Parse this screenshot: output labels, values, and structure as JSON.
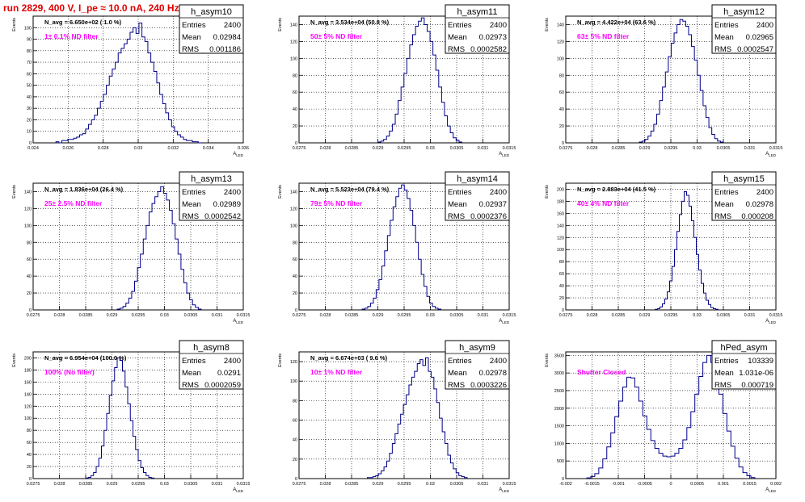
{
  "run_title": "run 2829,   400 V, I_pe ≈ 10.0 nA, 240 Hz",
  "colors": {
    "histogram": "#00008b",
    "annotation": "#ff00ff",
    "title": "#e00000"
  },
  "chart_data": [
    {
      "type": "histogram",
      "name": "h_asym10",
      "stats": {
        "entries": "2400",
        "mean": "0.02984",
        "rms": "0.001186"
      },
      "navg": "N_avg = 6.650e+02 ( 1.0 %)",
      "annotation": "1± 0.1% ND filter",
      "xlabel": "A_LED",
      "ylabel": "Events",
      "xlim": [
        0.024,
        0.036
      ],
      "ylim": [
        0,
        110
      ],
      "xticks": [
        "0.024",
        "0.026",
        "0.028",
        "0.03",
        "0.032",
        "0.034",
        "0.036"
      ],
      "yticks": [
        "0",
        "10",
        "20",
        "30",
        "40",
        "50",
        "60",
        "70",
        "80",
        "90",
        "100"
      ],
      "bins": {
        "lo": 0.0253,
        "hi": 0.0336,
        "values": [
          1,
          0,
          2,
          2,
          3,
          3,
          4,
          5,
          7,
          8,
          12,
          16,
          20,
          24,
          30,
          36,
          42,
          50,
          58,
          64,
          70,
          78,
          82,
          86,
          90,
          96,
          100,
          95,
          104,
          92,
          88,
          78,
          70,
          62,
          52,
          42,
          34,
          26,
          20,
          14,
          10,
          7,
          5,
          3,
          2,
          2,
          1,
          1,
          0
        ]
      }
    },
    {
      "type": "histogram",
      "name": "h_asym11",
      "stats": {
        "entries": "2400",
        "mean": "0.02973",
        "rms": "0.0002582"
      },
      "navg": "N_avg = 3.534e+04 (50.8 %)",
      "annotation": "50± 5% ND filter",
      "xlabel": "A_LED",
      "ylabel": "Events",
      "xlim": [
        0.0275,
        0.0315
      ],
      "ylim": [
        0,
        150
      ],
      "xticks": [
        "0.0275",
        "0.028",
        "0.0285",
        "0.029",
        "0.0295",
        "0.03",
        "0.0305",
        "0.031",
        "0.0315"
      ],
      "yticks": [
        "0",
        "20",
        "40",
        "60",
        "80",
        "100",
        "120",
        "140"
      ],
      "bins": {
        "lo": 0.029,
        "hi": 0.0306,
        "values": [
          1,
          2,
          4,
          8,
          14,
          22,
          34,
          50,
          66,
          82,
          100,
          116,
          128,
          138,
          144,
          148,
          140,
          132,
          120,
          104,
          86,
          66,
          48,
          32,
          20,
          12,
          6,
          3,
          1
        ]
      }
    },
    {
      "type": "histogram",
      "name": "h_asym12",
      "stats": {
        "entries": "2400",
        "mean": "0.02965",
        "rms": "0.0002547"
      },
      "navg": "N_avg = 4.422e+04 (63.6 %)",
      "annotation": "63± 5% ND filter",
      "xlabel": "A_LED",
      "ylabel": "Events",
      "xlim": [
        0.0275,
        0.0315
      ],
      "ylim": [
        0,
        150
      ],
      "xticks": [
        "0.0275",
        "0.028",
        "0.0285",
        "0.029",
        "0.0295",
        "0.03",
        "0.0305",
        "0.031",
        "0.0315"
      ],
      "yticks": [
        "0",
        "20",
        "40",
        "60",
        "80",
        "100",
        "120",
        "140"
      ],
      "bins": {
        "lo": 0.0289,
        "hi": 0.0305,
        "values": [
          1,
          2,
          4,
          8,
          14,
          22,
          34,
          50,
          66,
          84,
          102,
          118,
          130,
          140,
          146,
          144,
          138,
          128,
          114,
          98,
          80,
          62,
          44,
          30,
          18,
          10,
          5,
          2,
          1
        ]
      }
    },
    {
      "type": "histogram",
      "name": "h_asym13",
      "stats": {
        "entries": "2400",
        "mean": "0.02989",
        "rms": "0.0002542"
      },
      "navg": "N_avg = 1.836e+04 (26.4 %)",
      "annotation": "25± 2.5% ND filter",
      "xlabel": "A_LED",
      "ylabel": "Events",
      "xlim": [
        0.0275,
        0.0315
      ],
      "ylim": [
        0,
        150
      ],
      "xticks": [
        "0.0275",
        "0.028",
        "0.0285",
        "0.029",
        "0.0295",
        "0.03",
        "0.0305",
        "0.031",
        "0.0315"
      ],
      "yticks": [
        "0",
        "20",
        "40",
        "60",
        "80",
        "100",
        "120",
        "140"
      ],
      "bins": {
        "lo": 0.0291,
        "hi": 0.0307,
        "values": [
          1,
          2,
          4,
          8,
          14,
          22,
          34,
          50,
          66,
          84,
          100,
          116,
          126,
          134,
          140,
          146,
          138,
          130,
          118,
          102,
          84,
          66,
          48,
          32,
          20,
          12,
          6,
          3,
          1
        ]
      }
    },
    {
      "type": "histogram",
      "name": "h_asym14",
      "stats": {
        "entries": "2400",
        "mean": "0.02937",
        "rms": "0.0002376"
      },
      "navg": "N_avg = 5.523e+04 (79.4 %)",
      "annotation": "79± 5% ND filter",
      "xlabel": "A_LED",
      "ylabel": "Events",
      "xlim": [
        0.0275,
        0.0315
      ],
      "ylim": [
        0,
        150
      ],
      "xticks": [
        "0.0275",
        "0.028",
        "0.0285",
        "0.029",
        "0.0295",
        "0.03",
        "0.0305",
        "0.031",
        "0.0315"
      ],
      "yticks": [
        "0",
        "20",
        "40",
        "60",
        "80",
        "100",
        "120",
        "140"
      ],
      "bins": {
        "lo": 0.0287,
        "hi": 0.0302,
        "values": [
          1,
          2,
          4,
          8,
          14,
          24,
          36,
          52,
          70,
          88,
          106,
          122,
          134,
          144,
          148,
          142,
          132,
          118,
          100,
          80,
          60,
          42,
          28,
          16,
          8,
          4,
          2,
          1
        ]
      }
    },
    {
      "type": "histogram",
      "name": "h_asym15",
      "stats": {
        "entries": "2400",
        "mean": "0.02978",
        "rms": "0.000208"
      },
      "navg": "N_avg = 2.883e+04 (41.5 %)",
      "annotation": "40± 4% ND filter",
      "xlabel": "A_LED",
      "ylabel": "Events",
      "xlim": [
        0.0275,
        0.0315
      ],
      "ylim": [
        0,
        210
      ],
      "xticks": [
        "0.0275",
        "0.028",
        "0.0285",
        "0.029",
        "0.0295",
        "0.03",
        "0.0305",
        "0.031",
        "0.0315"
      ],
      "yticks": [
        "0",
        "20",
        "40",
        "60",
        "80",
        "100",
        "120",
        "140",
        "160",
        "180",
        "200"
      ],
      "bins": {
        "lo": 0.0292,
        "hi": 0.0304,
        "values": [
          1,
          2,
          5,
          10,
          18,
          30,
          48,
          72,
          100,
          130,
          158,
          180,
          196,
          190,
          172,
          148,
          120,
          92,
          66,
          44,
          28,
          16,
          9,
          4,
          2,
          1
        ]
      }
    },
    {
      "type": "histogram",
      "name": "h_asym8",
      "stats": {
        "entries": "2400",
        "mean": "0.0291",
        "rms": "0.0002059"
      },
      "navg": "N_avg = 6.954e+04 (100.0 %)",
      "annotation": "100% (No filter)",
      "xlabel": "A_LED",
      "ylabel": "Events",
      "xlim": [
        0.0275,
        0.0315
      ],
      "ylim": [
        0,
        210
      ],
      "xticks": [
        "0.0275",
        "0.028",
        "0.0285",
        "0.029",
        "0.0295",
        "0.03",
        "0.0305",
        "0.031",
        "0.0315"
      ],
      "yticks": [
        "0",
        "20",
        "40",
        "60",
        "80",
        "100",
        "120",
        "140",
        "160",
        "180",
        "200"
      ],
      "bins": {
        "lo": 0.0285,
        "hi": 0.0298,
        "values": [
          1,
          2,
          5,
          10,
          20,
          34,
          54,
          80,
          108,
          138,
          162,
          184,
          200,
          196,
          178,
          152,
          124,
          96,
          70,
          48,
          30,
          18,
          10,
          5,
          2,
          1
        ]
      }
    },
    {
      "type": "histogram",
      "name": "h_asym9",
      "stats": {
        "entries": "2400",
        "mean": "0.02978",
        "rms": "0.0003226"
      },
      "navg": "N_avg = 6.674e+03 ( 9.6 %)",
      "annotation": "10± 1% ND filter",
      "xlabel": "A_LED",
      "ylabel": "Events",
      "xlim": [
        0.0275,
        0.0315
      ],
      "ylim": [
        0,
        130
      ],
      "xticks": [
        "0.0275",
        "0.028",
        "0.0285",
        "0.029",
        "0.0295",
        "0.03",
        "0.0305",
        "0.031",
        "0.0315"
      ],
      "yticks": [
        "0",
        "20",
        "40",
        "60",
        "80",
        "100",
        "120"
      ],
      "bins": {
        "lo": 0.0288,
        "hi": 0.0307,
        "values": [
          1,
          1,
          2,
          3,
          5,
          8,
          12,
          18,
          26,
          36,
          46,
          56,
          66,
          76,
          86,
          96,
          104,
          110,
          118,
          122,
          116,
          124,
          110,
          104,
          92,
          78,
          62,
          48,
          36,
          24,
          16,
          10,
          6,
          3,
          2,
          1
        ]
      }
    },
    {
      "type": "histogram",
      "name": "hPed_asym",
      "stats": {
        "entries": "103339",
        "mean": "1.031e-06",
        "rms": "0.000719"
      },
      "navg": "",
      "annotation": "Shutter Closed",
      "xlabel": "A_LED",
      "ylabel": "Events",
      "xlim": [
        -0.002,
        0.002
      ],
      "ylim": [
        0,
        3600
      ],
      "xticks": [
        "-0.002",
        "-0.0015",
        "-0.001",
        "-0.0005",
        "0",
        "0.0005",
        "0.001",
        "0.0015",
        "0.002"
      ],
      "yticks": [
        "0",
        "500",
        "1000",
        "1500",
        "2000",
        "2500",
        "3000",
        "3500"
      ],
      "bins": {
        "lo": -0.0016,
        "hi": 0.0016,
        "values": [
          20,
          60,
          140,
          300,
          560,
          900,
          1300,
          1760,
          2200,
          2600,
          2880,
          2860,
          2600,
          2200,
          1780,
          1400,
          1080,
          860,
          720,
          640,
          620,
          640,
          720,
          860,
          1100,
          1450,
          1900,
          2400,
          2900,
          3300,
          3500,
          3300,
          2900,
          2400,
          1850,
          1350,
          920,
          580,
          330,
          170,
          80,
          30
        ]
      }
    }
  ]
}
